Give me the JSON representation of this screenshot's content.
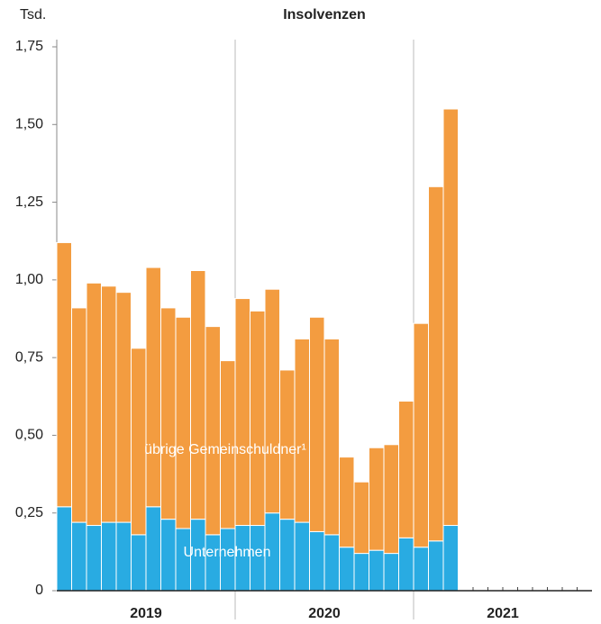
{
  "chart_data": {
    "type": "stacked_bar",
    "title": "Insolvenzen",
    "y_unit": "Tsd.",
    "categories": [
      null,
      null,
      null,
      null,
      null,
      null,
      null,
      null,
      null,
      null,
      null,
      null,
      null,
      null,
      null,
      null,
      null,
      null,
      null,
      null,
      null,
      null,
      null,
      null,
      null,
      null,
      null
    ],
    "years": [
      "2019",
      "2020",
      "2021"
    ],
    "series": [
      {
        "name": "Unternehmen",
        "color": "#29abe2",
        "values": [
          0.27,
          0.22,
          0.21,
          0.22,
          0.22,
          0.18,
          0.27,
          0.23,
          0.2,
          0.23,
          0.18,
          0.2,
          0.21,
          0.21,
          0.25,
          0.23,
          0.22,
          0.19,
          0.18,
          0.14,
          0.12,
          0.13,
          0.12,
          0.17,
          0.14,
          0.16,
          0.21
        ]
      },
      {
        "name": "übrige Gemeinschuldner¹",
        "color": "#f39c40",
        "values": [
          0.85,
          0.69,
          0.78,
          0.76,
          0.74,
          0.6,
          0.77,
          0.68,
          0.68,
          0.8,
          0.67,
          0.54,
          0.73,
          0.69,
          0.72,
          0.48,
          0.59,
          0.69,
          0.63,
          0.29,
          0.23,
          0.33,
          0.35,
          0.44,
          0.72,
          1.14,
          1.34
        ]
      }
    ],
    "ylim": [
      0,
      1.75
    ],
    "yticks": [
      0,
      {
        "value": 0.25,
        "label": "0,25"
      },
      {
        "value": 0.5,
        "label": "0,50"
      },
      {
        "value": 0.75,
        "label": "0,75"
      },
      {
        "value": 1,
        "label": "1,00"
      },
      {
        "value": 1.25,
        "label": "1,25"
      },
      {
        "value": 1.5,
        "label": "1,50"
      },
      {
        "value": 1.75,
        "label": "1,75"
      }
    ]
  }
}
